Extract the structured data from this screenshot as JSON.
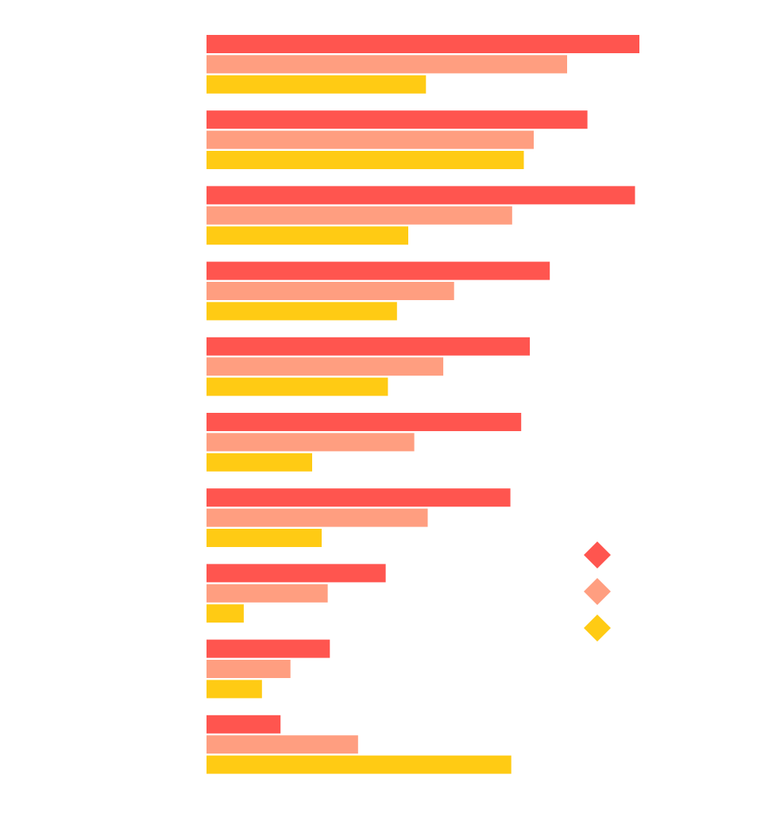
{
  "chart_data": {
    "type": "bar",
    "orientation": "horizontal",
    "title": "",
    "xlabel": "",
    "ylabel": "",
    "xlim": [
      0,
      100
    ],
    "grid": false,
    "axes_visible": false,
    "legend": {
      "position": "right",
      "marker": "diamond"
    },
    "categories": [
      "",
      "",
      "",
      "",
      "",
      "",
      "",
      "",
      "",
      ""
    ],
    "series": [
      {
        "color": "#ff554f",
        "values": [
          100,
          88,
          99,
          79.3,
          74.7,
          72.7,
          70.2,
          41.4,
          28.5,
          17.1
        ]
      },
      {
        "color": "#ff9e80",
        "values": [
          83.3,
          75.6,
          70.6,
          57.2,
          54.7,
          48,
          51.1,
          28,
          19.4,
          35
        ]
      },
      {
        "color": "#ffcb14",
        "values": [
          50.7,
          73.3,
          46.6,
          44,
          41.9,
          24.4,
          26.6,
          8.6,
          12.8,
          70.4
        ]
      }
    ]
  }
}
